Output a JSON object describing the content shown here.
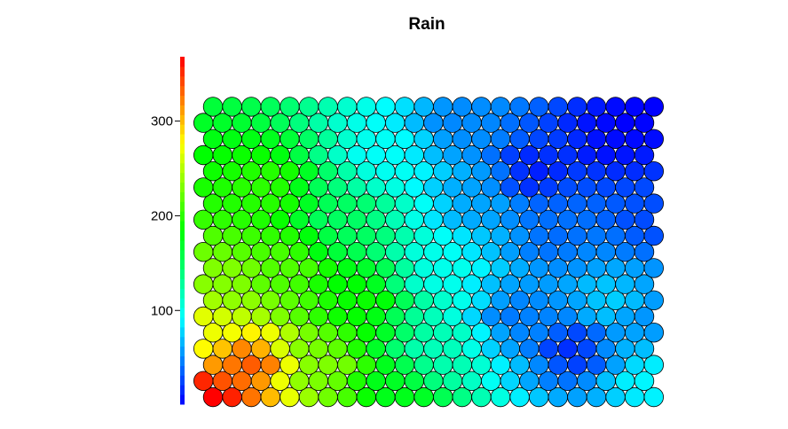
{
  "chart_data": {
    "type": "heatmap",
    "subtype": "som-hexagon-map",
    "title": "Rain",
    "grid": {
      "cols": 24,
      "rows": 19
    },
    "color_scale": {
      "range": [
        1,
        368
      ],
      "ticks": [
        100,
        200,
        300
      ],
      "palette": [
        "#0000ff",
        "#00ffff",
        "#00ff00",
        "#ffff00",
        "#ff0000"
      ],
      "position": "left"
    },
    "anchors": [
      {
        "col": 0,
        "row": 0,
        "value": 368
      },
      {
        "col": 2,
        "row": 2,
        "value": 335
      },
      {
        "col": 6,
        "row": 2,
        "value": 230
      },
      {
        "col": 10,
        "row": 0,
        "value": 175
      },
      {
        "col": 0,
        "row": 4,
        "value": 270
      },
      {
        "col": 1,
        "row": 7,
        "value": 232
      },
      {
        "col": 4,
        "row": 8,
        "value": 213
      },
      {
        "col": 8,
        "row": 6,
        "value": 188
      },
      {
        "col": 7,
        "row": 11,
        "value": 150
      },
      {
        "col": 12,
        "row": 3,
        "value": 118
      },
      {
        "col": 3,
        "row": 13,
        "value": 200
      },
      {
        "col": 9,
        "row": 15,
        "value": 95
      },
      {
        "col": 14,
        "row": 12,
        "value": 60
      },
      {
        "col": 13,
        "row": 17,
        "value": 50
      },
      {
        "col": 12,
        "row": 8,
        "value": 100
      },
      {
        "col": 16,
        "row": 5,
        "value": 45
      },
      {
        "col": 19,
        "row": 3,
        "value": 18
      },
      {
        "col": 21,
        "row": 16,
        "value": 5
      },
      {
        "col": 22,
        "row": 17,
        "value": 1
      },
      {
        "col": 23,
        "row": 18,
        "value": 1
      },
      {
        "col": 18,
        "row": 10,
        "value": 40
      },
      {
        "col": 21,
        "row": 6,
        "value": 75
      },
      {
        "col": 23,
        "row": 1,
        "value": 90
      },
      {
        "col": 23,
        "row": 5,
        "value": 55
      },
      {
        "col": 17,
        "row": 14,
        "value": 12
      },
      {
        "col": 23,
        "row": 11,
        "value": 28
      }
    ]
  }
}
